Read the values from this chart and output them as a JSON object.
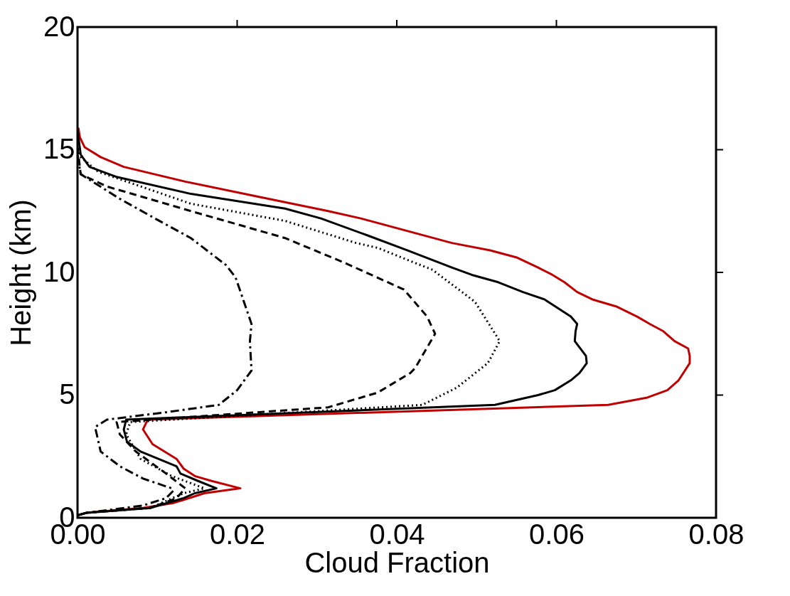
{
  "chart_data": {
    "type": "line",
    "xlabel": "Cloud Fraction",
    "ylabel": "Height (km)",
    "xlim": [
      0,
      0.08
    ],
    "ylim": [
      0,
      20
    ],
    "xticks": [
      {
        "value": 0,
        "label": "0.00"
      },
      {
        "value": 0.02,
        "label": "0.02"
      },
      {
        "value": 0.04,
        "label": "0.04"
      },
      {
        "value": 0.06,
        "label": "0.06"
      },
      {
        "value": 0.08,
        "label": "0.08"
      }
    ],
    "yticks": [
      0,
      5,
      10,
      15,
      20
    ],
    "marker": "none",
    "series": [
      {
        "color": "#c00000",
        "line_style": "solid",
        "x": [
          0.0001,
          0.0003,
          0.0009,
          0.0029,
          0.0058,
          0.0135,
          0.0224,
          0.0314,
          0.0355,
          0.0469,
          0.0517,
          0.0551,
          0.0577,
          0.0595,
          0.061,
          0.0626,
          0.0645,
          0.0676,
          0.0701,
          0.0717,
          0.0734,
          0.0748,
          0.0765,
          0.0767,
          0.0767,
          0.0759,
          0.0753,
          0.0739,
          0.0714,
          0.0665,
          0.0088,
          0.0082,
          0.0094,
          0.0124,
          0.0133,
          0.0147,
          0.0168,
          0.0204,
          0.0159,
          0.012,
          0.0082,
          0.0011,
          0
        ],
        "values": [
          15.9,
          15.5,
          15.1,
          14.7,
          14.3,
          13.7,
          13.1,
          12.5,
          12.2,
          11.2,
          10.9,
          10.6,
          10.2,
          9.9,
          9.6,
          9.2,
          8.9,
          8.6,
          8.2,
          7.9,
          7.6,
          7.2,
          6.9,
          6.6,
          6.3,
          5.9,
          5.6,
          5.2,
          4.9,
          4.6,
          4.0,
          3.6,
          3.0,
          2.4,
          2.0,
          1.7,
          1.5,
          1.2,
          1.0,
          0.6,
          0.4,
          0.2,
          0.1
        ]
      },
      {
        "color": "#000000",
        "line_style": "solid",
        "x": [
          0,
          0.0004,
          0.0015,
          0.0048,
          0.0142,
          0.026,
          0.0305,
          0.0364,
          0.0413,
          0.0469,
          0.0494,
          0.0527,
          0.0558,
          0.0585,
          0.0618,
          0.0626,
          0.0624,
          0.0623,
          0.0637,
          0.0638,
          0.0629,
          0.0618,
          0.0598,
          0.0577,
          0.0523,
          0.0061,
          0.0058,
          0.0062,
          0.0079,
          0.0124,
          0.0129,
          0.0151,
          0.0174,
          0.0147,
          0.0133,
          0.0091,
          0.0011,
          0
        ],
        "values": [
          15.8,
          14.8,
          14.3,
          13.9,
          13.2,
          12.6,
          12.2,
          11.5,
          10.9,
          10.2,
          9.9,
          9.6,
          9.2,
          8.9,
          8.2,
          7.9,
          7.6,
          7.2,
          6.6,
          6.3,
          5.9,
          5.6,
          5.2,
          5.0,
          4.6,
          4.0,
          3.6,
          3.1,
          2.7,
          2.1,
          1.8,
          1.5,
          1.2,
          1.0,
          0.8,
          0.4,
          0.2,
          0.1
        ]
      },
      {
        "color": "#000000",
        "line_style": "dotted",
        "x": [
          0,
          0.0004,
          0.0026,
          0.0142,
          0.026,
          0.0349,
          0.0376,
          0.0445,
          0.0498,
          0.0529,
          0.0514,
          0.0475,
          0.0432,
          0.0066,
          0.0061,
          0.0079,
          0.0118,
          0.0159,
          0.0133,
          0.0091,
          0.0011,
          0
        ],
        "values": [
          15.4,
          14.7,
          14.1,
          12.8,
          12.1,
          11.2,
          11.0,
          10.1,
          8.8,
          7.2,
          6.3,
          5.3,
          4.6,
          3.9,
          3.4,
          2.4,
          1.7,
          1.2,
          1.0,
          0.4,
          0.2,
          0.1
        ]
      },
      {
        "color": "#000000",
        "line_style": "dashed",
        "x": [
          0,
          0.0004,
          0.0037,
          0.0142,
          0.026,
          0.0334,
          0.0409,
          0.0438,
          0.0448,
          0.0423,
          0.0417,
          0.0376,
          0.0314,
          0.0049,
          0.0053,
          0.0073,
          0.0111,
          0.0135,
          0.0124,
          0.0091,
          0.0011,
          0
        ],
        "values": [
          15.1,
          14.0,
          13.5,
          12.5,
          11.4,
          10.4,
          9.3,
          8.2,
          7.5,
          6.1,
          5.9,
          5.1,
          4.5,
          3.9,
          3.4,
          2.7,
          1.8,
          1.2,
          0.8,
          0.4,
          0.2,
          0.1
        ]
      },
      {
        "color": "#000000",
        "line_style": "dashdot",
        "x": [
          0,
          0.0004,
          0.0053,
          0.0097,
          0.0142,
          0.0186,
          0.0198,
          0.0218,
          0.0216,
          0.0218,
          0.02,
          0.0177,
          0.0111,
          0.0037,
          0.0022,
          0.0029,
          0.0053,
          0.0082,
          0.0118,
          0.012,
          0.0111,
          0.0082,
          0.0011,
          0
        ],
        "values": [
          14.8,
          14.0,
          13.0,
          12.2,
          11.4,
          10.3,
          9.8,
          7.9,
          7.2,
          6.0,
          5.2,
          4.6,
          4.3,
          4.0,
          3.7,
          2.7,
          2.1,
          1.6,
          1.2,
          1.1,
          0.8,
          0.5,
          0.2,
          0.1
        ]
      }
    ]
  }
}
